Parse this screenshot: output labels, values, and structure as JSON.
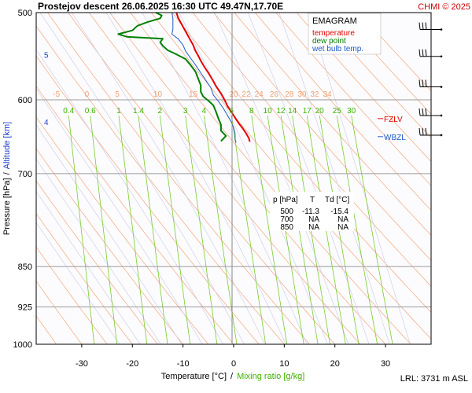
{
  "header": {
    "title": "Prostejov   descent   26.06.2025 16:30 UTC  49.47N,17.70E",
    "credit": "CHMI © 2025"
  },
  "chart_data": {
    "type": "line",
    "title": "EMAGRAM",
    "xlabel": "Temperature [°C]",
    "xlabel_separator": "/",
    "xlabel_secondary": "Mixing ratio [g/kg]",
    "ylabel": "Pressure [hPa]",
    "ylabel_separator": "/",
    "ylabel_secondary": "Altitude [km]",
    "y_scale": "log",
    "xlim": [
      -39,
      39
    ],
    "ylim": [
      500,
      1000
    ],
    "grid": true,
    "legend_position": "top-right",
    "x_ticks": [
      -30,
      -20,
      -10,
      0,
      10,
      20,
      30
    ],
    "pressure_ticks": [
      500,
      600,
      700,
      850,
      925,
      1000
    ],
    "altitude_ticks": [
      {
        "label": "5",
        "pressure": 546
      },
      {
        "label": "4",
        "pressure": 628
      }
    ],
    "dry_adiabat_labels": [
      {
        "label": "-5",
        "temperature": -35
      },
      {
        "label": "0",
        "temperature": -29
      },
      {
        "label": "5",
        "temperature": -23
      },
      {
        "label": "10",
        "temperature": -15
      },
      {
        "label": "15",
        "temperature": -8
      },
      {
        "label": "20",
        "temperature": 0
      },
      {
        "label": "22",
        "temperature": 2.5
      },
      {
        "label": "24",
        "temperature": 5
      },
      {
        "label": "26",
        "temperature": 8
      },
      {
        "label": "28",
        "temperature": 11
      },
      {
        "label": "30",
        "temperature": 13.5
      },
      {
        "label": "32",
        "temperature": 16
      },
      {
        "label": "34",
        "temperature": 18.5
      }
    ],
    "mixing_ratio_labels": [
      "0.4",
      "0.6",
      "1",
      "1.4",
      "2",
      "3",
      "4",
      "6",
      "8",
      "10",
      "12",
      "14",
      "17",
      "20",
      "25",
      "30"
    ],
    "series": [
      {
        "name": "temperature",
        "color": "#e60000",
        "points": [
          {
            "t": -11.3,
            "p": 500
          },
          {
            "t": -11,
            "p": 505
          },
          {
            "t": -10.5,
            "p": 510
          },
          {
            "t": -10,
            "p": 515
          },
          {
            "t": -9.5,
            "p": 520
          },
          {
            "t": -9,
            "p": 525
          },
          {
            "t": -8.5,
            "p": 530
          },
          {
            "t": -8,
            "p": 535
          },
          {
            "t": -7.6,
            "p": 541
          },
          {
            "t": -7,
            "p": 547
          },
          {
            "t": -6.5,
            "p": 553
          },
          {
            "t": -5.8,
            "p": 560
          },
          {
            "t": -5,
            "p": 567
          },
          {
            "t": -4.2,
            "p": 575
          },
          {
            "t": -3.5,
            "p": 583
          },
          {
            "t": -2.5,
            "p": 592
          },
          {
            "t": -1.8,
            "p": 600
          },
          {
            "t": -1.2,
            "p": 608
          },
          {
            "t": -0.5,
            "p": 615
          },
          {
            "t": 0.2,
            "p": 622
          },
          {
            "t": 1,
            "p": 630
          },
          {
            "t": 1.8,
            "p": 637
          },
          {
            "t": 2.5,
            "p": 644
          },
          {
            "t": 3,
            "p": 650
          },
          {
            "t": 3.2,
            "p": 655
          }
        ]
      },
      {
        "name": "dew point",
        "color": "#008000",
        "points": [
          {
            "t": -15.4,
            "p": 500
          },
          {
            "t": -14.2,
            "p": 503
          },
          {
            "t": -14.5,
            "p": 506
          },
          {
            "t": -17,
            "p": 510
          },
          {
            "t": -19,
            "p": 514
          },
          {
            "t": -20,
            "p": 519
          },
          {
            "t": -22.8,
            "p": 523
          },
          {
            "t": -21,
            "p": 526
          },
          {
            "t": -14,
            "p": 528
          },
          {
            "t": -14.5,
            "p": 532
          },
          {
            "t": -14,
            "p": 536
          },
          {
            "t": -13,
            "p": 541
          },
          {
            "t": -11.5,
            "p": 545
          },
          {
            "t": -9.5,
            "p": 551
          },
          {
            "t": -8.5,
            "p": 558
          },
          {
            "t": -7.5,
            "p": 566
          },
          {
            "t": -7,
            "p": 574
          },
          {
            "t": -6.5,
            "p": 582
          },
          {
            "t": -6.5,
            "p": 590
          },
          {
            "t": -6,
            "p": 596
          },
          {
            "t": -5,
            "p": 601
          },
          {
            "t": -4,
            "p": 607
          },
          {
            "t": -3.5,
            "p": 615
          },
          {
            "t": -3,
            "p": 624
          },
          {
            "t": -2.5,
            "p": 632
          },
          {
            "t": -2.5,
            "p": 640
          },
          {
            "t": -1.5,
            "p": 647
          },
          {
            "t": -2.5,
            "p": 654
          }
        ]
      },
      {
        "name": "wet bulb temp.",
        "color": "#1e5bc8",
        "points": [
          {
            "t": -12.2,
            "p": 500
          },
          {
            "t": -12,
            "p": 506
          },
          {
            "t": -12,
            "p": 512
          },
          {
            "t": -12,
            "p": 518
          },
          {
            "t": -12.2,
            "p": 523
          },
          {
            "t": -11,
            "p": 528
          },
          {
            "t": -10,
            "p": 535
          },
          {
            "t": -9.5,
            "p": 542
          },
          {
            "t": -8.5,
            "p": 550
          },
          {
            "t": -7.5,
            "p": 558
          },
          {
            "t": -6.5,
            "p": 567
          },
          {
            "t": -5.5,
            "p": 576
          },
          {
            "t": -4.5,
            "p": 585
          },
          {
            "t": -4,
            "p": 594
          },
          {
            "t": -3,
            "p": 602
          },
          {
            "t": -2,
            "p": 611
          },
          {
            "t": -1.2,
            "p": 620
          },
          {
            "t": -0.5,
            "p": 628
          },
          {
            "t": 0,
            "p": 636
          },
          {
            "t": 0.3,
            "p": 644
          },
          {
            "t": 0.3,
            "p": 652
          },
          {
            "t": 0.5,
            "p": 656
          }
        ]
      }
    ],
    "levels": [
      {
        "label": "FZLV",
        "pressure": 624,
        "color": "#e60000"
      },
      {
        "label": "WBZL",
        "pressure": 648,
        "color": "#1e5bc8"
      }
    ],
    "table": {
      "headers": [
        "p [hPa]",
        "T",
        "Td [°C]"
      ],
      "rows": [
        [
          "500",
          "-11.3",
          "-15.4"
        ],
        [
          "700",
          "NA",
          "NA"
        ],
        [
          "850",
          "NA",
          "NA"
        ]
      ]
    },
    "wind_barbs": [
      {
        "pressure": 518,
        "color": "#000000"
      },
      {
        "pressure": 548,
        "color": "#000000"
      },
      {
        "pressure": 584,
        "color": "#000000"
      },
      {
        "pressure": 620,
        "color": "#000000"
      },
      {
        "pressure": 646,
        "color": "#000000"
      }
    ]
  },
  "footer": {
    "lrl": "LRL: 3731 m ASL"
  },
  "colors": {
    "dry_adiabat": "#f5b08a",
    "moist_adiabat": "#cfd0e6",
    "mixing_ratio": "#7acc2a",
    "isobar": "#9a9a9a",
    "plot_background": "#fcfcff"
  }
}
